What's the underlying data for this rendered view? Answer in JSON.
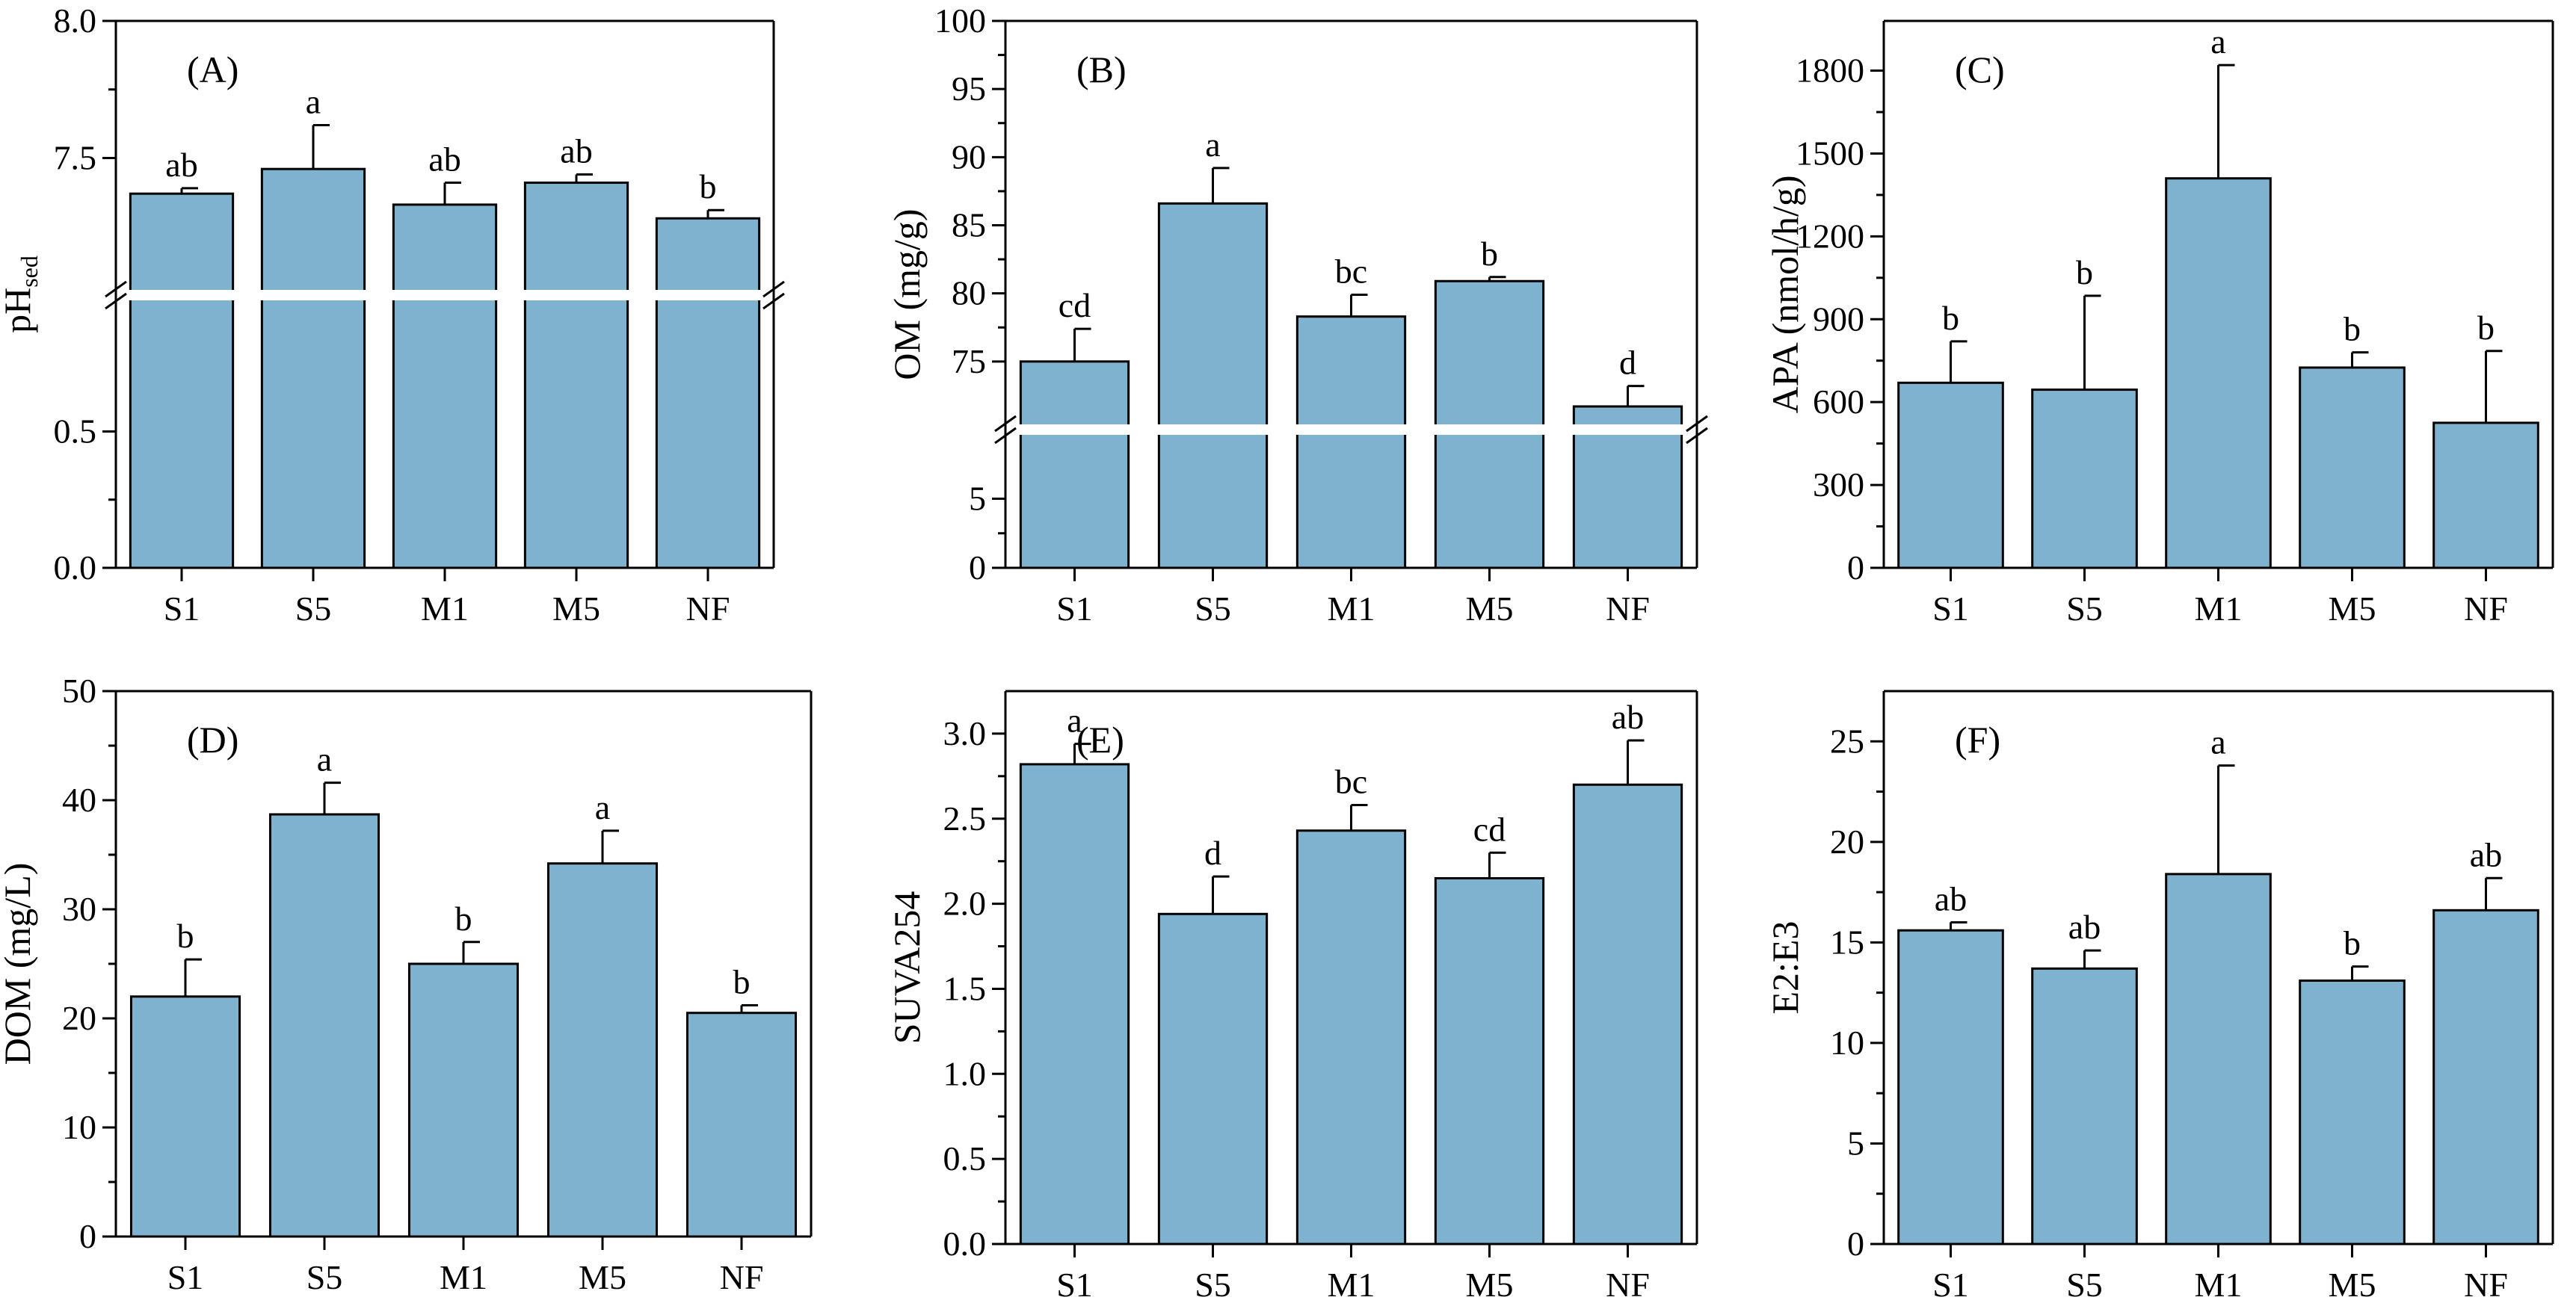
{
  "figure": {
    "bar_color": "#7FB2CE",
    "edge_color": "#000000",
    "break_color": "#ffffff"
  },
  "chart_data": [
    {
      "panel": "(A)",
      "type": "bar",
      "ylabel": "pH",
      "ylabel_sub": "sed",
      "categories": [
        "S1",
        "S5",
        "M1",
        "M5",
        "NF"
      ],
      "values": [
        7.37,
        7.46,
        7.33,
        7.41,
        7.28
      ],
      "errors": [
        0.02,
        0.16,
        0.08,
        0.03,
        0.03
      ],
      "letters": [
        "ab",
        "a",
        "ab",
        "ab",
        "b"
      ],
      "axis_break": {
        "lower": [
          0,
          1.0
        ],
        "upper": [
          7.0,
          8.0
        ]
      },
      "ticks": [
        {
          "value": 0,
          "label": "0.0"
        },
        {
          "value": 0.5,
          "label": "0.5"
        },
        {
          "value": 7.5,
          "label": "7.5"
        },
        {
          "value": 8.0,
          "label": "8.0"
        }
      ]
    },
    {
      "panel": "(B)",
      "type": "bar",
      "ylabel": "OM (mg/g)",
      "categories": [
        "S1",
        "S5",
        "M1",
        "M5",
        "NF"
      ],
      "values": [
        75.0,
        86.6,
        78.3,
        80.9,
        71.7
      ],
      "errors": [
        2.4,
        2.6,
        1.6,
        0.3,
        1.5
      ],
      "letters": [
        "cd",
        "a",
        "bc",
        "b",
        "d"
      ],
      "axis_break": {
        "lower": [
          0,
          10
        ],
        "upper": [
          70,
          100
        ]
      },
      "ticks": [
        {
          "value": 0,
          "label": "0"
        },
        {
          "value": 5,
          "label": "5"
        },
        {
          "value": 75,
          "label": "75"
        },
        {
          "value": 80,
          "label": "80"
        },
        {
          "value": 85,
          "label": "85"
        },
        {
          "value": 90,
          "label": "90"
        },
        {
          "value": 95,
          "label": "95"
        },
        {
          "value": 100,
          "label": "100"
        }
      ]
    },
    {
      "panel": "(C)",
      "type": "bar",
      "ylabel": "APA (nmol/h/g)",
      "categories": [
        "S1",
        "S5",
        "M1",
        "M5",
        "NF"
      ],
      "values": [
        670,
        645,
        1410,
        725,
        525
      ],
      "errors": [
        150,
        340,
        410,
        55,
        260
      ],
      "letters": [
        "b",
        "b",
        "a",
        "b",
        "b"
      ],
      "ylim": [
        0,
        1980
      ],
      "ticks": [
        {
          "value": 0,
          "label": "0"
        },
        {
          "value": 300,
          "label": "300"
        },
        {
          "value": 600,
          "label": "600"
        },
        {
          "value": 900,
          "label": "900"
        },
        {
          "value": 1200,
          "label": "1200"
        },
        {
          "value": 1500,
          "label": "1500"
        },
        {
          "value": 1800,
          "label": "1800"
        }
      ]
    },
    {
      "panel": "(D)",
      "type": "bar",
      "ylabel": "DOM (mg/L)",
      "categories": [
        "S1",
        "S5",
        "M1",
        "M5",
        "NF"
      ],
      "values": [
        22.0,
        38.7,
        25.0,
        34.2,
        20.5
      ],
      "errors": [
        3.4,
        2.9,
        2.0,
        3.0,
        0.7
      ],
      "letters": [
        "b",
        "a",
        "b",
        "a",
        "b"
      ],
      "ylim": [
        0,
        50
      ],
      "ticks": [
        {
          "value": 0,
          "label": "0"
        },
        {
          "value": 10,
          "label": "10"
        },
        {
          "value": 20,
          "label": "20"
        },
        {
          "value": 30,
          "label": "30"
        },
        {
          "value": 40,
          "label": "40"
        },
        {
          "value": 50,
          "label": "50"
        }
      ]
    },
    {
      "panel": "(E)",
      "type": "bar",
      "ylabel": "SUVA254",
      "categories": [
        "S1",
        "S5",
        "M1",
        "M5",
        "NF"
      ],
      "values": [
        2.82,
        1.94,
        2.43,
        2.15,
        2.7
      ],
      "errors": [
        0.12,
        0.22,
        0.15,
        0.15,
        0.26
      ],
      "letters": [
        "a",
        "d",
        "bc",
        "cd",
        "ab"
      ],
      "ylim": [
        0,
        3.25
      ],
      "ticks": [
        {
          "value": 0,
          "label": "0.0"
        },
        {
          "value": 0.5,
          "label": "0.5"
        },
        {
          "value": 1.0,
          "label": "1.0"
        },
        {
          "value": 1.5,
          "label": "1.5"
        },
        {
          "value": 2.0,
          "label": "2.0"
        },
        {
          "value": 2.5,
          "label": "2.5"
        },
        {
          "value": 3.0,
          "label": "3.0"
        }
      ]
    },
    {
      "panel": "(F)",
      "type": "bar",
      "ylabel": "E2:E3",
      "categories": [
        "S1",
        "S5",
        "M1",
        "M5",
        "NF"
      ],
      "values": [
        15.6,
        13.7,
        18.4,
        13.1,
        16.6
      ],
      "errors": [
        0.4,
        0.9,
        5.4,
        0.7,
        1.6
      ],
      "letters": [
        "ab",
        "ab",
        "a",
        "b",
        "ab"
      ],
      "ylim": [
        0,
        27.5
      ],
      "ticks": [
        {
          "value": 0,
          "label": "0"
        },
        {
          "value": 5,
          "label": "5"
        },
        {
          "value": 10,
          "label": "10"
        },
        {
          "value": 15,
          "label": "15"
        },
        {
          "value": 20,
          "label": "20"
        },
        {
          "value": 25,
          "label": "25"
        }
      ]
    }
  ]
}
